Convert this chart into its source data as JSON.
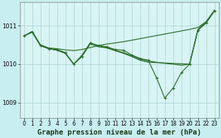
{
  "title": "Graphe pression niveau de la mer (hPa)",
  "background_color": "#c8eef0",
  "plot_bg_color": "#d8f4f4",
  "grid_color": "#aacfcf",
  "line_color": "#2d6e2d",
  "xlim": [
    -0.5,
    23.5
  ],
  "ylim": [
    1008.6,
    1011.6
  ],
  "yticks": [
    1009,
    1010,
    1011
  ],
  "xticks": [
    0,
    1,
    2,
    3,
    4,
    5,
    6,
    7,
    8,
    9,
    10,
    11,
    12,
    13,
    14,
    15,
    16,
    17,
    18,
    19,
    20,
    21,
    22,
    23
  ],
  "series": [
    {
      "x": [
        0,
        1,
        2,
        3,
        4,
        5,
        6,
        7,
        8,
        9,
        10,
        11,
        12,
        13,
        14,
        15,
        16,
        17,
        18,
        19,
        20,
        21,
        22,
        23
      ],
      "y": [
        1010.73,
        1010.85,
        1010.5,
        1010.42,
        1010.4,
        1010.37,
        1010.35,
        1010.38,
        1010.43,
        1010.48,
        1010.52,
        1010.55,
        1010.58,
        1010.62,
        1010.66,
        1010.7,
        1010.74,
        1010.78,
        1010.82,
        1010.86,
        1010.9,
        1010.95,
        1011.1,
        1011.38
      ],
      "marker": false,
      "lw": 0.9
    },
    {
      "x": [
        0,
        1,
        2,
        3,
        4,
        5,
        6,
        7,
        8,
        9,
        10,
        11,
        12,
        13,
        14,
        15,
        16,
        17,
        18,
        19,
        20,
        21,
        22,
        23
      ],
      "y": [
        1010.73,
        1010.83,
        1010.48,
        1010.4,
        1010.38,
        1010.3,
        1010.0,
        1010.2,
        1010.55,
        1010.48,
        1010.45,
        1010.38,
        1010.36,
        1010.24,
        1010.15,
        1010.1,
        1009.65,
        1009.12,
        1009.38,
        1009.78,
        1010.0,
        1010.88,
        1011.07,
        1011.38
      ],
      "marker": true,
      "lw": 0.9
    },
    {
      "x": [
        0,
        1,
        2,
        3,
        4,
        5,
        6,
        7,
        8,
        9,
        10,
        11,
        12,
        13,
        14,
        15,
        16,
        17,
        18,
        19,
        20,
        21,
        22,
        23
      ],
      "y": [
        1010.73,
        1010.83,
        1010.48,
        1010.4,
        1010.36,
        1010.28,
        1010.0,
        1010.23,
        1010.55,
        1010.48,
        1010.43,
        1010.36,
        1010.3,
        1010.22,
        1010.13,
        1010.08,
        1010.05,
        1010.02,
        1010.0,
        1009.97,
        1010.0,
        1010.88,
        1011.07,
        1011.38
      ],
      "marker": false,
      "lw": 0.9
    },
    {
      "x": [
        0,
        1,
        2,
        3,
        4,
        5,
        6,
        7,
        8,
        9,
        10,
        11,
        12,
        13,
        14,
        15,
        20,
        21,
        22,
        23
      ],
      "y": [
        1010.73,
        1010.83,
        1010.48,
        1010.4,
        1010.36,
        1010.28,
        1010.0,
        1010.2,
        1010.52,
        1010.45,
        1010.42,
        1010.35,
        1010.28,
        1010.2,
        1010.1,
        1010.05,
        1010.0,
        1010.9,
        1011.1,
        1011.4
      ],
      "marker": false,
      "lw": 0.9
    }
  ],
  "label_fontsize": 7.5,
  "tick_fontsize": 5.5
}
